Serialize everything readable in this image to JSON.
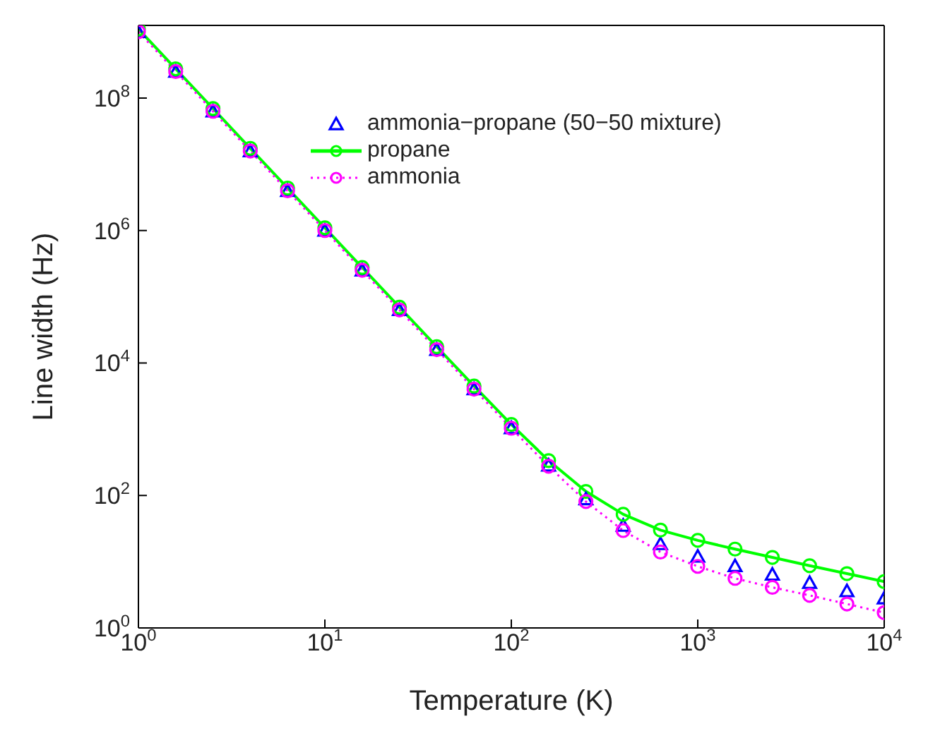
{
  "chart_data": {
    "type": "line",
    "xlabel": "Temperature (K)",
    "ylabel": "Line width (Hz)",
    "log": "xy",
    "grid": false,
    "legend": "top right",
    "x": [
      1,
      1.585,
      2.512,
      3.981,
      6.31,
      10,
      15.85,
      25.12,
      39.81,
      63.1,
      100,
      158.5,
      251.2,
      398.1,
      631,
      1000,
      1585,
      2512,
      3981,
      6310,
      10000
    ],
    "xlim": [
      1,
      10000
    ],
    "xticks": [
      {
        "value": 1,
        "label": "10$^{0}$"
      },
      {
        "value": 10,
        "label": "10$^{1}$"
      },
      {
        "value": 100,
        "label": "10$^{2}$"
      },
      {
        "value": 1000,
        "label": "10$^{3}$"
      },
      {
        "value": 10000,
        "label": "10$^{4}$"
      }
    ],
    "ylim": [
      1,
      1250000000
    ],
    "yticks": [
      {
        "value": 1,
        "label": "10$^{0}$"
      },
      {
        "value": 100,
        "label": "10$^{2}$"
      },
      {
        "value": 10000,
        "label": "10$^{4}$"
      },
      {
        "value": 1000000,
        "label": "10$^{6}$"
      },
      {
        "value": 100000000,
        "label": "10$^{8}$"
      }
    ],
    "series": [
      {
        "name": "ammonia−propane (50−50 mixture)",
        "type": "scatter",
        "marker": "triangle",
        "color": "#0000ff",
        "values": [
          1000000000,
          251000000,
          63100000,
          15850000,
          3980000,
          1000000,
          251000,
          63200,
          15900,
          4039,
          1044,
          284,
          88,
          35,
          18.5,
          12,
          8.6,
          6.4,
          4.8,
          3.6,
          2.8
        ]
      },
      {
        "name": "propane",
        "marker": "circle",
        "line_style": "solid",
        "color": "#00ff00",
        "values": [
          1100000000,
          276000000,
          69400000,
          17400000,
          4380000,
          1100000,
          276000,
          69600,
          17600,
          4483,
          1180,
          336,
          115,
          52,
          30,
          21,
          15.5,
          11.6,
          8.7,
          6.6,
          5.0
        ]
      },
      {
        "name": "ammonia",
        "marker": "circle",
        "line_style": "dotted",
        "color": "#ff00ff",
        "values": [
          1000000000,
          251000000,
          63100000,
          15850000,
          3980000,
          1000000,
          251000,
          63200,
          15900,
          4026,
          1034,
          276,
          81,
          29.5,
          14,
          8.5,
          5.6,
          4.1,
          3.1,
          2.3,
          1.7
        ]
      }
    ]
  }
}
